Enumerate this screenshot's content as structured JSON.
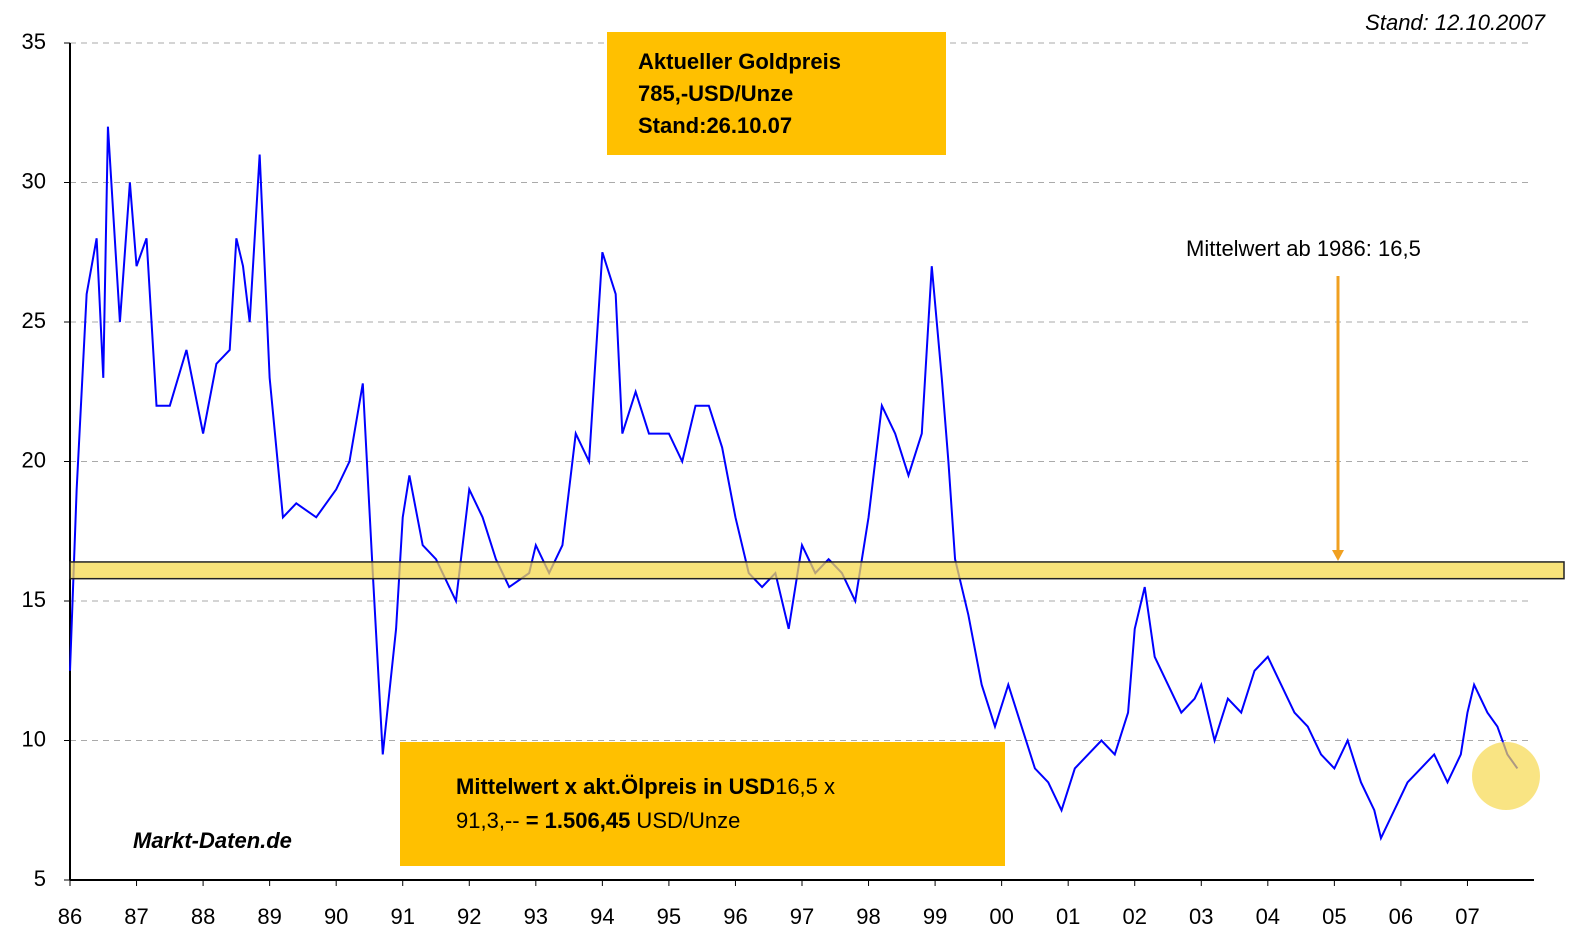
{
  "chart_data": {
    "type": "line",
    "x": [
      1986.0,
      1986.1,
      1986.25,
      1986.4,
      1986.5,
      1986.57,
      1986.75,
      1986.9,
      1987.0,
      1987.15,
      1987.3,
      1987.5,
      1987.75,
      1988.0,
      1988.2,
      1988.4,
      1988.5,
      1988.6,
      1988.7,
      1988.85,
      1989.0,
      1989.2,
      1989.4,
      1989.7,
      1990.0,
      1990.2,
      1990.4,
      1990.55,
      1990.7,
      1990.9,
      1991.0,
      1991.1,
      1991.3,
      1991.5,
      1991.8,
      1992.0,
      1992.2,
      1992.4,
      1992.6,
      1992.9,
      1993.0,
      1993.2,
      1993.4,
      1993.6,
      1993.8,
      1994.0,
      1994.2,
      1994.3,
      1994.5,
      1994.7,
      1995.0,
      1995.2,
      1995.4,
      1995.6,
      1995.8,
      1996.0,
      1996.2,
      1996.4,
      1996.6,
      1996.8,
      1997.0,
      1997.2,
      1997.4,
      1997.6,
      1997.8,
      1998.0,
      1998.2,
      1998.4,
      1998.6,
      1998.8,
      1998.95,
      1999.1,
      1999.2,
      1999.3,
      1999.5,
      1999.7,
      1999.9,
      2000.1,
      2000.3,
      2000.5,
      2000.7,
      2000.9,
      2001.1,
      2001.3,
      2001.5,
      2001.7,
      2001.9,
      2002.0,
      2002.15,
      2002.3,
      2002.5,
      2002.7,
      2002.9,
      2003.0,
      2003.2,
      2003.4,
      2003.6,
      2003.8,
      2004.0,
      2004.2,
      2004.4,
      2004.6,
      2004.8,
      2005.0,
      2005.2,
      2005.4,
      2005.6,
      2005.7,
      2005.9,
      2006.1,
      2006.3,
      2006.5,
      2006.7,
      2006.9,
      2007.0,
      2007.1,
      2007.3,
      2007.45,
      2007.6,
      2007.75
    ],
    "values": [
      12.5,
      19,
      26,
      28,
      23,
      32,
      25,
      30,
      27,
      28,
      22,
      22,
      24,
      21,
      23.5,
      24,
      28,
      27,
      25,
      31,
      23,
      18,
      18.5,
      18,
      19,
      20,
      22.8,
      16,
      9.5,
      14,
      18,
      19.5,
      17,
      16.5,
      15,
      19,
      18,
      16.5,
      15.5,
      16,
      17,
      16,
      17,
      21,
      20,
      27.5,
      26,
      21,
      22.5,
      21,
      21,
      20,
      22,
      22,
      20.5,
      18,
      16,
      15.5,
      16,
      14,
      17,
      16,
      16.5,
      16,
      15,
      18,
      22,
      21,
      19.5,
      21,
      27,
      23,
      20,
      16.5,
      14.5,
      12,
      10.5,
      12,
      10.5,
      9,
      8.5,
      7.5,
      9,
      9.5,
      10,
      9.5,
      11,
      14,
      15.5,
      13,
      12,
      11,
      11.5,
      12,
      10,
      11.5,
      11,
      12.5,
      13,
      12,
      11,
      10.5,
      9.5,
      9,
      10,
      8.5,
      7.5,
      6.5,
      7.5,
      8.5,
      9,
      9.5,
      8.5,
      9.5,
      11,
      12,
      11,
      10.5,
      9.5,
      9
    ],
    "color": "#0000ff",
    "xlim": [
      1986,
      2008
    ],
    "ylim": [
      5,
      35
    ],
    "xticks": [
      {
        "value": 1986,
        "label": "86"
      },
      {
        "value": 1987,
        "label": "87"
      },
      {
        "value": 1988,
        "label": "88"
      },
      {
        "value": 1989,
        "label": "89"
      },
      {
        "value": 1990,
        "label": "90"
      },
      {
        "value": 1991,
        "label": "91"
      },
      {
        "value": 1992,
        "label": "92"
      },
      {
        "value": 1993,
        "label": "93"
      },
      {
        "value": 1994,
        "label": "94"
      },
      {
        "value": 1995,
        "label": "95"
      },
      {
        "value": 1996,
        "label": "96"
      },
      {
        "value": 1997,
        "label": "97"
      },
      {
        "value": 1998,
        "label": "98"
      },
      {
        "value": 1999,
        "label": "99"
      },
      {
        "value": 2000,
        "label": "00"
      },
      {
        "value": 2001,
        "label": "01"
      },
      {
        "value": 2002,
        "label": "02"
      },
      {
        "value": 2003,
        "label": "03"
      },
      {
        "value": 2004,
        "label": "04"
      },
      {
        "value": 2005,
        "label": "05"
      },
      {
        "value": 2006,
        "label": "06"
      },
      {
        "value": 2007,
        "label": "07"
      }
    ],
    "yticks": [
      5,
      10,
      15,
      20,
      25,
      30,
      35
    ],
    "grid": true,
    "band": {
      "from": 15.8,
      "to": 16.4
    },
    "date_note": "Stand: 12.10.2007",
    "mean_label": "Mittelwert ab 1986: 16,5",
    "source": "Markt-Daten.de",
    "gold_box": [
      "Aktueller Goldpreis",
      "785,-USD/Unze",
      "Stand:26.10.07"
    ],
    "calc_box": [
      {
        "text": "Mittelwert x akt.Ölpreis in USD",
        "bold": true
      },
      {
        "text": "16,5 x",
        "bold": false
      },
      {
        "text": "91,3,-- ",
        "bold": false
      },
      {
        "text": "= 1.506,45",
        "bold": true
      },
      {
        "text": " USD/Unze",
        "bold": false
      }
    ]
  }
}
